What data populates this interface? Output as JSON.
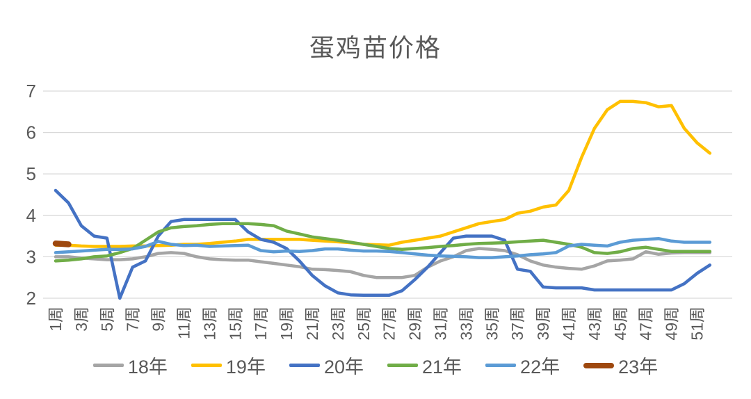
{
  "chart_data": {
    "type": "line",
    "title": "蛋鸡苗价格",
    "xlabel": "",
    "ylabel": "",
    "x_unit": "周",
    "ylim": [
      2,
      7
    ],
    "yticks": [
      2,
      3,
      4,
      5,
      6,
      7
    ],
    "grid": "horizontal",
    "legend_position": "bottom",
    "axis_text_color": "#595959",
    "gridline_color": "#D9D9D9",
    "xtick_labels": [
      "1周",
      "3周",
      "5周",
      "7周",
      "9周",
      "11周",
      "13周",
      "15周",
      "17周",
      "19周",
      "21周",
      "23周",
      "25周",
      "27周",
      "29周",
      "31周",
      "33周",
      "35周",
      "37周",
      "39周",
      "41周",
      "43周",
      "45周",
      "47周",
      "49周",
      "51周"
    ],
    "weeks": [
      1,
      2,
      3,
      4,
      5,
      6,
      7,
      8,
      9,
      10,
      11,
      12,
      13,
      14,
      15,
      16,
      17,
      18,
      19,
      20,
      21,
      22,
      23,
      24,
      25,
      26,
      27,
      28,
      29,
      30,
      31,
      32,
      33,
      34,
      35,
      36,
      37,
      38,
      39,
      40,
      41,
      42,
      43,
      44,
      45,
      46,
      47,
      48,
      49,
      50,
      51,
      52
    ],
    "series": [
      {
        "name": "18年",
        "color": "#A5A5A5",
        "values": [
          3.0,
          3.0,
          2.97,
          2.95,
          2.93,
          2.93,
          2.95,
          3.0,
          3.08,
          3.1,
          3.08,
          3.0,
          2.95,
          2.93,
          2.92,
          2.92,
          2.88,
          2.84,
          2.8,
          2.76,
          2.7,
          2.69,
          2.67,
          2.64,
          2.55,
          2.5,
          2.5,
          2.5,
          2.55,
          2.75,
          2.9,
          3.0,
          3.15,
          3.2,
          3.18,
          3.15,
          3.05,
          2.9,
          2.8,
          2.75,
          2.72,
          2.7,
          2.78,
          2.9,
          2.92,
          2.95,
          3.12,
          3.06,
          3.09,
          3.1,
          3.1,
          3.1
        ]
      },
      {
        "name": "19年",
        "color": "#FFC000",
        "values": [
          3.28,
          3.28,
          3.26,
          3.25,
          3.25,
          3.25,
          3.26,
          3.26,
          3.27,
          3.28,
          3.3,
          3.3,
          3.32,
          3.35,
          3.38,
          3.42,
          3.42,
          3.42,
          3.42,
          3.42,
          3.4,
          3.38,
          3.36,
          3.34,
          3.3,
          3.29,
          3.28,
          3.35,
          3.4,
          3.45,
          3.5,
          3.6,
          3.7,
          3.8,
          3.85,
          3.9,
          4.05,
          4.1,
          4.2,
          4.25,
          4.6,
          5.4,
          6.1,
          6.55,
          6.75,
          6.75,
          6.72,
          6.62,
          6.65,
          6.1,
          5.75,
          5.5
        ]
      },
      {
        "name": "20年",
        "color": "#4472C4",
        "values": [
          4.6,
          4.3,
          3.75,
          3.5,
          3.45,
          2.0,
          2.75,
          2.9,
          3.5,
          3.85,
          3.9,
          3.9,
          3.9,
          3.9,
          3.9,
          3.6,
          3.42,
          3.35,
          3.2,
          2.9,
          2.55,
          2.3,
          2.13,
          2.08,
          2.07,
          2.07,
          2.07,
          2.18,
          2.45,
          2.75,
          3.1,
          3.45,
          3.5,
          3.5,
          3.5,
          3.4,
          2.7,
          2.65,
          2.27,
          2.25,
          2.25,
          2.25,
          2.2,
          2.2,
          2.2,
          2.2,
          2.2,
          2.2,
          2.2,
          2.35,
          2.6,
          2.8
        ]
      },
      {
        "name": "21年",
        "color": "#70AD47",
        "values": [
          2.9,
          2.92,
          2.95,
          3.0,
          3.02,
          3.1,
          3.2,
          3.4,
          3.6,
          3.7,
          3.73,
          3.75,
          3.78,
          3.8,
          3.8,
          3.8,
          3.78,
          3.75,
          3.62,
          3.55,
          3.48,
          3.44,
          3.4,
          3.35,
          3.3,
          3.25,
          3.2,
          3.18,
          3.2,
          3.22,
          3.25,
          3.27,
          3.3,
          3.32,
          3.33,
          3.34,
          3.36,
          3.38,
          3.4,
          3.35,
          3.3,
          3.23,
          3.1,
          3.08,
          3.12,
          3.2,
          3.23,
          3.18,
          3.13,
          3.13,
          3.13,
          3.13
        ]
      },
      {
        "name": "22年",
        "color": "#5B9BD5",
        "values": [
          3.1,
          3.12,
          3.14,
          3.16,
          3.18,
          3.18,
          3.19,
          3.25,
          3.37,
          3.3,
          3.27,
          3.28,
          3.25,
          3.26,
          3.27,
          3.28,
          3.15,
          3.12,
          3.14,
          3.13,
          3.15,
          3.19,
          3.19,
          3.16,
          3.14,
          3.14,
          3.13,
          3.1,
          3.07,
          3.04,
          3.02,
          3.01,
          3.0,
          2.98,
          2.98,
          3.0,
          3.02,
          3.05,
          3.07,
          3.1,
          3.26,
          3.3,
          3.28,
          3.26,
          3.35,
          3.4,
          3.42,
          3.44,
          3.38,
          3.35,
          3.35,
          3.35
        ]
      },
      {
        "name": "23年",
        "color": "#9E480E",
        "values": [
          3.32,
          3.3,
          null,
          null,
          null,
          null,
          null,
          null,
          null,
          null,
          null,
          null,
          null,
          null,
          null,
          null,
          null,
          null,
          null,
          null,
          null,
          null,
          null,
          null,
          null,
          null,
          null,
          null,
          null,
          null,
          null,
          null,
          null,
          null,
          null,
          null,
          null,
          null,
          null,
          null,
          null,
          null,
          null,
          null,
          null,
          null,
          null,
          null,
          null,
          null,
          null,
          null
        ]
      }
    ]
  }
}
